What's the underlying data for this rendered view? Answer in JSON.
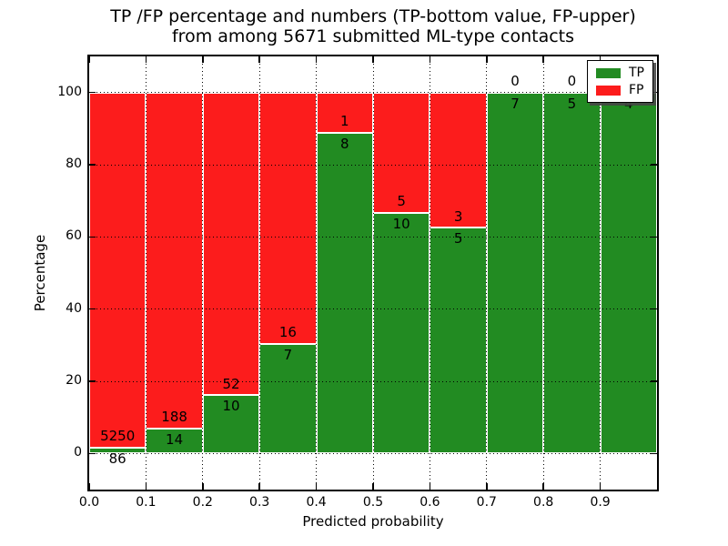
{
  "chart_data": {
    "type": "bar",
    "stacked": true,
    "title_line1": "TP /FP percentage and numbers (TP-bottom value, FP-upper)",
    "title_line2": "from among 5671 submitted ML-type contacts",
    "xlabel": "Predicted probability",
    "ylabel": "Percentage",
    "xlim": [
      0.0,
      1.0
    ],
    "ylim": [
      -10,
      110
    ],
    "x_tick_values": [
      0.0,
      0.1,
      0.2,
      0.3,
      0.4,
      0.5,
      0.6,
      0.7,
      0.8,
      0.9
    ],
    "x_tick_labels": [
      "0.0",
      "0.1",
      "0.2",
      "0.3",
      "0.4",
      "0.5",
      "0.6",
      "0.7",
      "0.8",
      "0.9"
    ],
    "y_tick_values": [
      0,
      20,
      40,
      60,
      80,
      100
    ],
    "y_tick_labels": [
      "0",
      "20",
      "40",
      "60",
      "80",
      "100"
    ],
    "grid_style": "dotted",
    "total_contacts": 5671,
    "colors": {
      "tp": "#228b22",
      "fp": "#fc1c1c",
      "bar_edge": "#ffffff"
    },
    "legend": {
      "position": "upper right",
      "entries": [
        {
          "label": "TP",
          "color": "#228b22"
        },
        {
          "label": "FP",
          "color": "#fc1c1c"
        }
      ]
    },
    "series": [
      {
        "name": "TP",
        "position": "bottom",
        "color": "#228b22"
      },
      {
        "name": "FP",
        "position": "top",
        "color": "#fc1c1c"
      }
    ],
    "bins": [
      {
        "range": [
          0.0,
          0.1
        ],
        "tp_count": 86,
        "fp_count": 5250,
        "tp_pct": 1.61,
        "fp_pct": 98.39
      },
      {
        "range": [
          0.1,
          0.2
        ],
        "tp_count": 14,
        "fp_count": 188,
        "tp_pct": 6.93,
        "fp_pct": 93.07
      },
      {
        "range": [
          0.2,
          0.3
        ],
        "tp_count": 10,
        "fp_count": 52,
        "tp_pct": 16.13,
        "fp_pct": 83.87
      },
      {
        "range": [
          0.3,
          0.4
        ],
        "tp_count": 7,
        "fp_count": 16,
        "tp_pct": 30.43,
        "fp_pct": 69.57
      },
      {
        "range": [
          0.4,
          0.5
        ],
        "tp_count": 8,
        "fp_count": 1,
        "tp_pct": 88.89,
        "fp_pct": 11.11
      },
      {
        "range": [
          0.5,
          0.6
        ],
        "tp_count": 10,
        "fp_count": 5,
        "tp_pct": 66.67,
        "fp_pct": 33.33
      },
      {
        "range": [
          0.6,
          0.7
        ],
        "tp_count": 5,
        "fp_count": 3,
        "tp_pct": 62.5,
        "fp_pct": 37.5
      },
      {
        "range": [
          0.7,
          0.8
        ],
        "tp_count": 7,
        "fp_count": 0,
        "tp_pct": 100,
        "fp_pct": 0
      },
      {
        "range": [
          0.8,
          0.9
        ],
        "tp_count": 5,
        "fp_count": 0,
        "tp_pct": 100,
        "fp_pct": 0
      },
      {
        "range": [
          0.9,
          1.0
        ],
        "tp_count": 4,
        "fp_count": 0,
        "tp_pct": 100,
        "fp_pct": 0
      }
    ]
  }
}
